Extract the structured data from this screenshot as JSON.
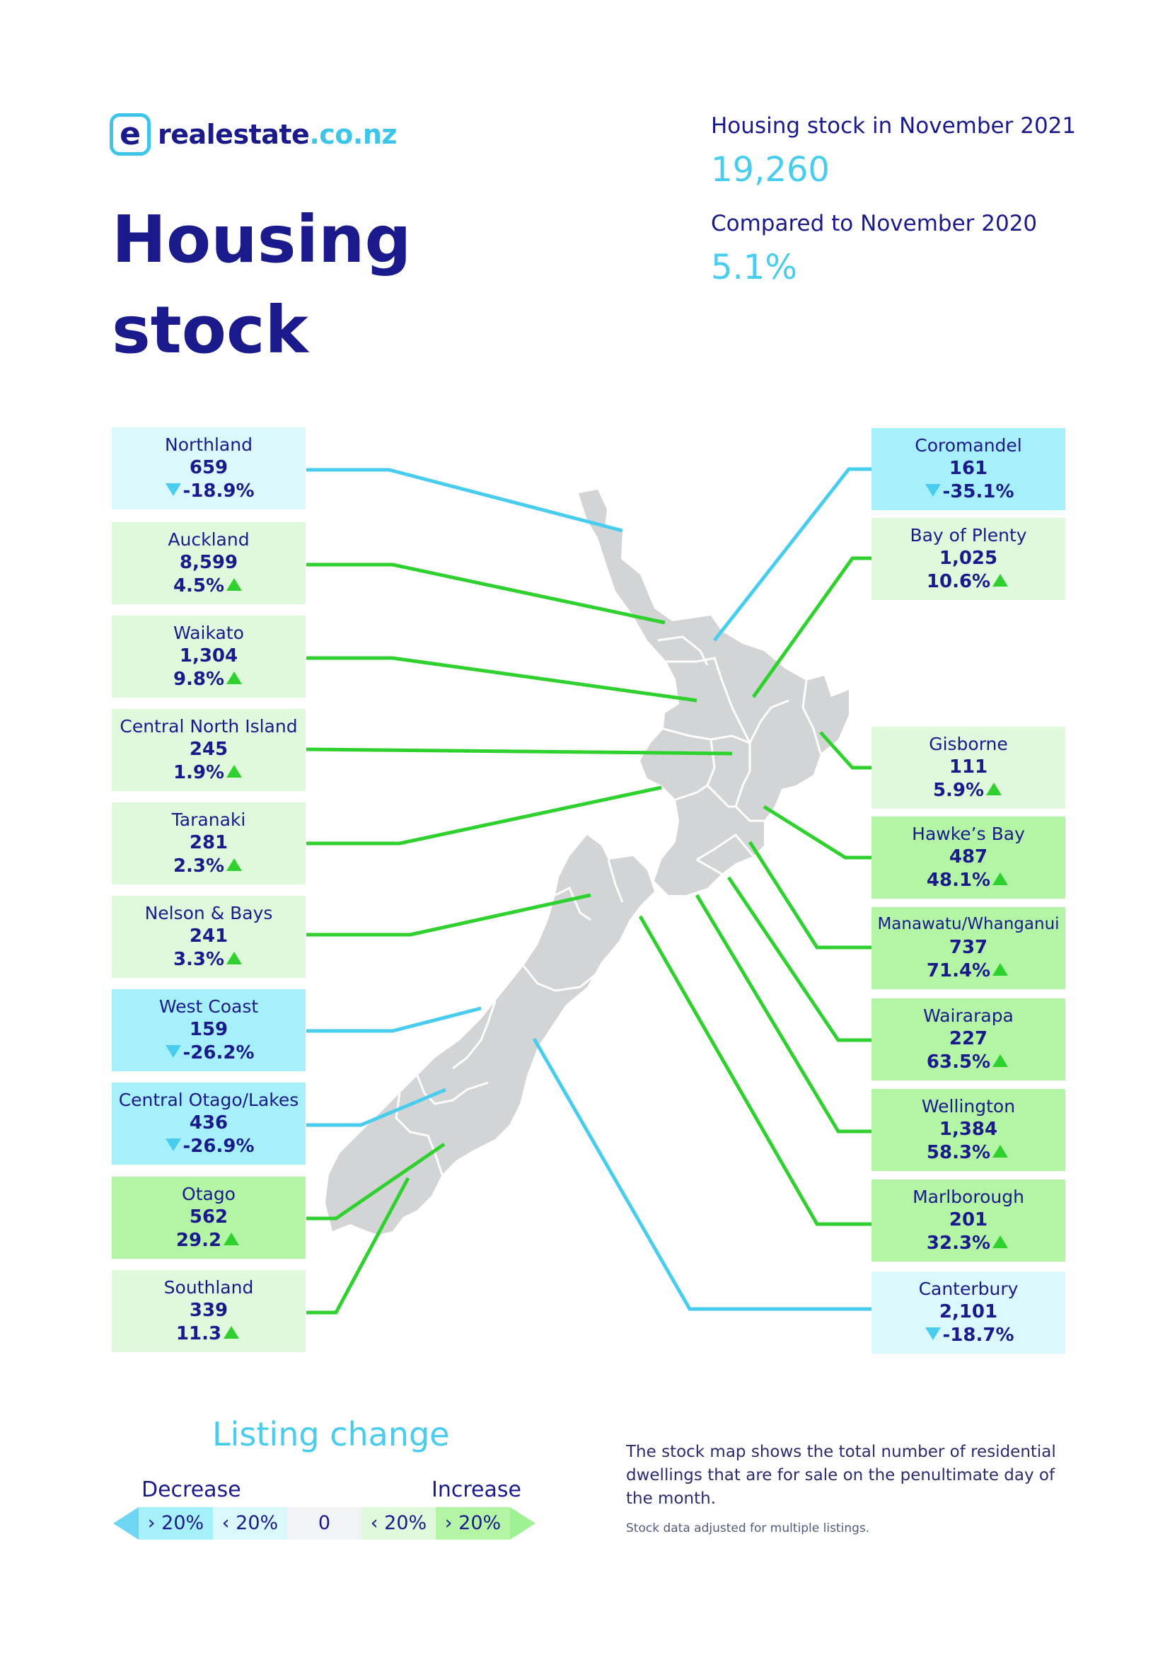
{
  "brand": {
    "logo_mark": "e",
    "name": "realestate",
    "tld": ".co.nz"
  },
  "title": {
    "line1": "Housing",
    "line2": "stock"
  },
  "summary": {
    "stock_label": "Housing stock in November 2021",
    "stock_value": "19,260",
    "compare_label": "Compared to November 2020",
    "compare_value": "5.1%"
  },
  "colors": {
    "brand_navy": "#1a1a8c",
    "brand_cyan": "#49cdef",
    "decrease_over_20": "#a5f0fb",
    "decrease_under_20": "#dbf8fc",
    "increase_under_20": "#e0f9dc",
    "increase_over_20": "#b3f5a4",
    "land": "#d2d4d5"
  },
  "regions": [
    {
      "id": "northland",
      "name": "Northland",
      "value": "659",
      "change": "-18.9%",
      "direction": "down",
      "category": "dec"
    },
    {
      "id": "auckland",
      "name": "Auckland",
      "value": "8,599",
      "change": "4.5%",
      "direction": "up",
      "category": "inc"
    },
    {
      "id": "waikato",
      "name": "Waikato",
      "value": "1,304",
      "change": "9.8%",
      "direction": "up",
      "category": "inc"
    },
    {
      "id": "central-north-island",
      "name": "Central North Island",
      "value": "245",
      "change": "1.9%",
      "direction": "up",
      "category": "inc"
    },
    {
      "id": "taranaki",
      "name": "Taranaki",
      "value": "281",
      "change": "2.3%",
      "direction": "up",
      "category": "inc"
    },
    {
      "id": "nelson-bays",
      "name": "Nelson & Bays",
      "value": "241",
      "change": "3.3%",
      "direction": "up",
      "category": "inc"
    },
    {
      "id": "west-coast",
      "name": "West Coast",
      "value": "159",
      "change": "-26.2%",
      "direction": "down",
      "category": "dec-strong"
    },
    {
      "id": "central-otago-lakes",
      "name": "Central Otago/Lakes",
      "value": "436",
      "change": "-26.9%",
      "direction": "down",
      "category": "dec-strong"
    },
    {
      "id": "otago",
      "name": "Otago",
      "value": "562",
      "change": "29.2",
      "direction": "up",
      "category": "inc-strong"
    },
    {
      "id": "southland",
      "name": "Southland",
      "value": "339",
      "change": "11.3",
      "direction": "up",
      "category": "inc"
    },
    {
      "id": "coromandel",
      "name": "Coromandel",
      "value": "161",
      "change": "-35.1%",
      "direction": "down",
      "category": "dec-strong"
    },
    {
      "id": "bay-of-plenty",
      "name": "Bay of Plenty",
      "value": "1,025",
      "change": "10.6%",
      "direction": "up",
      "category": "inc"
    },
    {
      "id": "gisborne",
      "name": "Gisborne",
      "value": "111",
      "change": "5.9%",
      "direction": "up",
      "category": "inc"
    },
    {
      "id": "hawkes-bay",
      "name": "Hawke’s Bay",
      "value": "487",
      "change": "48.1%",
      "direction": "up",
      "category": "inc-strong"
    },
    {
      "id": "manawatu-whanganui",
      "name": "Manawatu/Whanganui",
      "value": "737",
      "change": "71.4%",
      "direction": "up",
      "category": "inc-strong"
    },
    {
      "id": "wairarapa",
      "name": "Wairarapa",
      "value": "227",
      "change": "63.5%",
      "direction": "up",
      "category": "inc-strong"
    },
    {
      "id": "wellington",
      "name": "Wellington",
      "value": "1,384",
      "change": "58.3%",
      "direction": "up",
      "category": "inc-strong"
    },
    {
      "id": "marlborough",
      "name": "Marlborough",
      "value": "201",
      "change": "32.3%",
      "direction": "up",
      "category": "inc-strong"
    },
    {
      "id": "canterbury",
      "name": "Canterbury",
      "value": "2,101",
      "change": "-18.7%",
      "direction": "down",
      "category": "dec"
    }
  ],
  "legend": {
    "title": "Listing change",
    "decrease_label": "Decrease",
    "increase_label": "Increase",
    "scale": [
      "› 20%",
      "‹ 20%",
      "0",
      "‹ 20%",
      "› 20%"
    ]
  },
  "note": "The stock map shows the total number of residential dwellings that are for sale on the penultimate day of the month.",
  "footnote": "Stock data adjusted for multiple listings."
}
